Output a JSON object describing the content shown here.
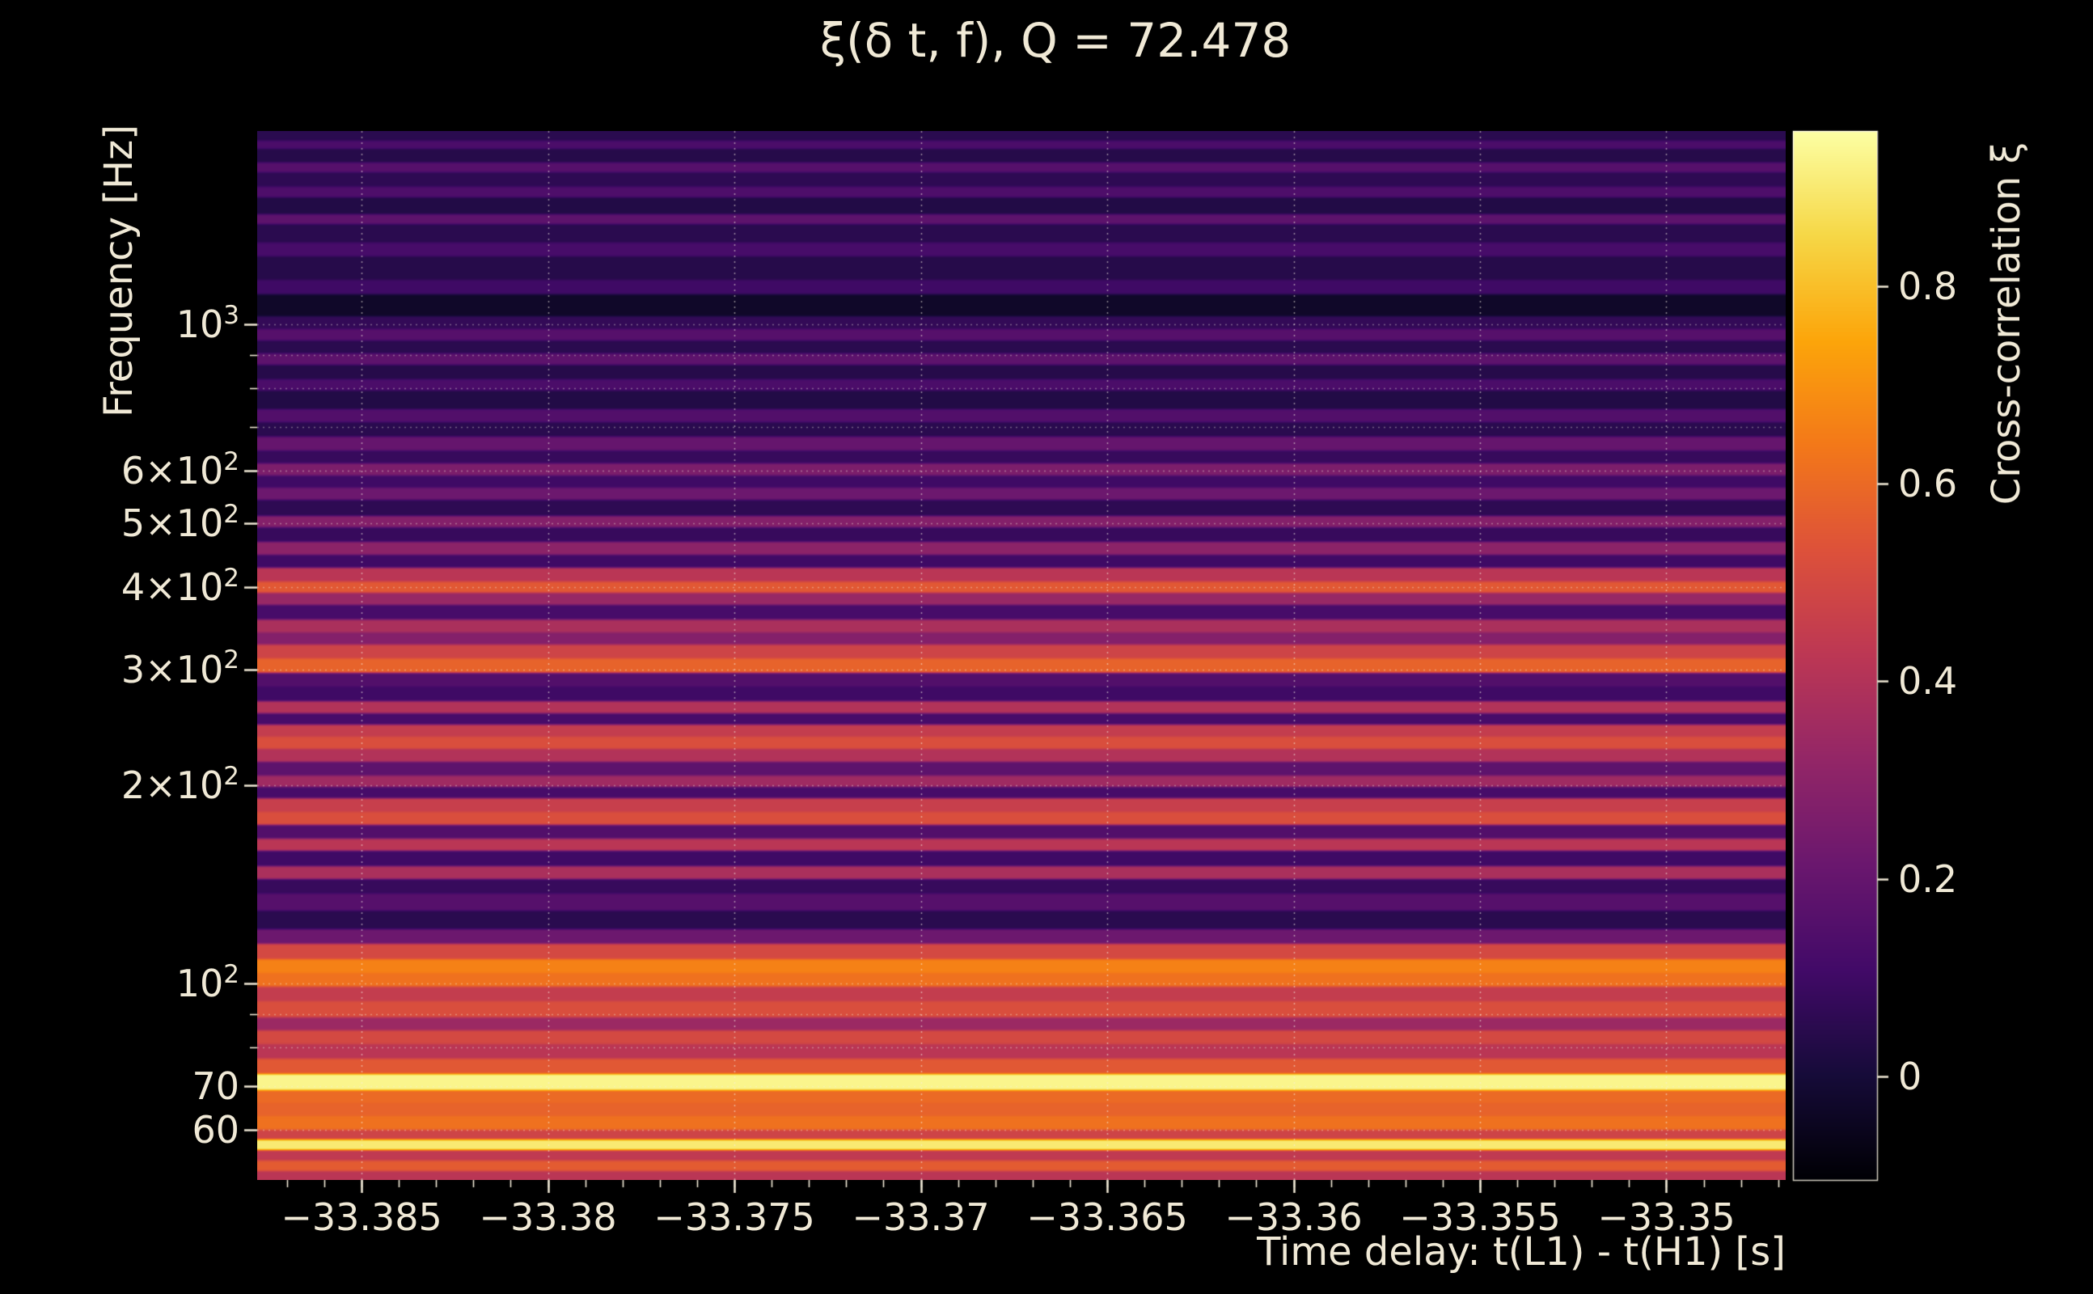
{
  "colors": {
    "background": "#000000",
    "text": "#f0e9d6"
  },
  "chart_data": {
    "type": "heatmap",
    "title": "ξ(δ t, f), Q = 72.478",
    "x": {
      "label": "Time delay: t(L1) - t(H1) [s]",
      "min": -33.3878,
      "max": -33.3468,
      "minor_tick_step": 0.001,
      "ticks": [
        {
          "value": -33.385,
          "label": "−33.385"
        },
        {
          "value": -33.38,
          "label": "−33.38"
        },
        {
          "value": -33.375,
          "label": "−33.375"
        },
        {
          "value": -33.37,
          "label": "−33.37"
        },
        {
          "value": -33.365,
          "label": "−33.365"
        },
        {
          "value": -33.36,
          "label": "−33.36"
        },
        {
          "value": -33.355,
          "label": "−33.355"
        },
        {
          "value": -33.35,
          "label": "−33.35"
        }
      ]
    },
    "y": {
      "label": "Frequency [Hz]",
      "scale": "log",
      "min": 50.4,
      "max": 1966,
      "ticks": [
        {
          "value": 1000,
          "mantissa": "10",
          "exponent": "3"
        },
        {
          "value": 600,
          "mantissa": "6×10",
          "exponent": "2"
        },
        {
          "value": 500,
          "mantissa": "5×10",
          "exponent": "2"
        },
        {
          "value": 400,
          "mantissa": "4×10",
          "exponent": "2"
        },
        {
          "value": 300,
          "mantissa": "3×10",
          "exponent": "2"
        },
        {
          "value": 200,
          "mantissa": "2×10",
          "exponent": "2"
        },
        {
          "value": 100,
          "mantissa": "10",
          "exponent": "2"
        },
        {
          "value": 70,
          "mantissa": "70",
          "exponent": ""
        },
        {
          "value": 60,
          "mantissa": "60",
          "exponent": ""
        }
      ],
      "minor_ticks": [
        80,
        90,
        700,
        800,
        900,
        2000
      ]
    },
    "colorbar": {
      "label": "Cross-correlation ξ",
      "vmin": -0.105,
      "vmax": 0.957,
      "ticks": [
        {
          "value": 0,
          "label": "0"
        },
        {
          "value": 0.2,
          "label": "0.2"
        },
        {
          "value": 0.4,
          "label": "0.4"
        },
        {
          "value": 0.6,
          "label": "0.6"
        },
        {
          "value": 0.8,
          "label": "0.8"
        }
      ]
    },
    "colormap": {
      "name": "inferno",
      "anchors": [
        [
          0.0,
          "#000004"
        ],
        [
          0.1,
          "#160b39"
        ],
        [
          0.2,
          "#420a68"
        ],
        [
          0.3,
          "#6a176e"
        ],
        [
          0.4,
          "#932667"
        ],
        [
          0.5,
          "#bc3754"
        ],
        [
          0.6,
          "#dd513a"
        ],
        [
          0.7,
          "#f37819"
        ],
        [
          0.8,
          "#fca50a"
        ],
        [
          0.9,
          "#f6d746"
        ],
        [
          1.0,
          "#fcffa4"
        ]
      ]
    },
    "bands_format": [
      "f_hi_hz",
      "f_lo_hz",
      "xi"
    ],
    "bands": [
      [
        2000,
        1900,
        0.05
      ],
      [
        1900,
        1850,
        0.13
      ],
      [
        1850,
        1760,
        0.04
      ],
      [
        1760,
        1700,
        0.16
      ],
      [
        1700,
        1620,
        0.06
      ],
      [
        1620,
        1560,
        0.14
      ],
      [
        1560,
        1470,
        0.03
      ],
      [
        1470,
        1420,
        0.18
      ],
      [
        1420,
        1330,
        0.05
      ],
      [
        1330,
        1270,
        0.12
      ],
      [
        1270,
        1170,
        0.04
      ],
      [
        1170,
        1110,
        0.1
      ],
      [
        1110,
        1030,
        -0.03
      ],
      [
        1030,
        985,
        0.07
      ],
      [
        985,
        945,
        0.16
      ],
      [
        945,
        905,
        0.05
      ],
      [
        905,
        870,
        0.18
      ],
      [
        870,
        825,
        0.04
      ],
      [
        825,
        795,
        0.13
      ],
      [
        795,
        745,
        0.03
      ],
      [
        745,
        712,
        0.15
      ],
      [
        712,
        675,
        0.05
      ],
      [
        675,
        645,
        0.2
      ],
      [
        645,
        615,
        0.08
      ],
      [
        615,
        590,
        0.26
      ],
      [
        590,
        565,
        0.1
      ],
      [
        565,
        542,
        0.22
      ],
      [
        542,
        512,
        0.06
      ],
      [
        512,
        492,
        0.28
      ],
      [
        492,
        468,
        0.08
      ],
      [
        468,
        448,
        0.3
      ],
      [
        448,
        428,
        0.1
      ],
      [
        428,
        408,
        0.42
      ],
      [
        408,
        392,
        0.55
      ],
      [
        392,
        376,
        0.33
      ],
      [
        376,
        357,
        0.12
      ],
      [
        357,
        341,
        0.38
      ],
      [
        341,
        327,
        0.28
      ],
      [
        327,
        312,
        0.48
      ],
      [
        312,
        296,
        0.58
      ],
      [
        296,
        282,
        0.15
      ],
      [
        282,
        268,
        0.1
      ],
      [
        268,
        257,
        0.4
      ],
      [
        257,
        247,
        0.12
      ],
      [
        247,
        237,
        0.45
      ],
      [
        237,
        227,
        0.52
      ],
      [
        227,
        217,
        0.4
      ],
      [
        217,
        207,
        0.18
      ],
      [
        207,
        199,
        0.35
      ],
      [
        199,
        191,
        0.12
      ],
      [
        191,
        182,
        0.46
      ],
      [
        182,
        174,
        0.52
      ],
      [
        174,
        166,
        0.15
      ],
      [
        166,
        159,
        0.42
      ],
      [
        159,
        151,
        0.1
      ],
      [
        151,
        144,
        0.38
      ],
      [
        144,
        137,
        0.08
      ],
      [
        137,
        129,
        0.16
      ],
      [
        129,
        121,
        0.05
      ],
      [
        121,
        115,
        0.22
      ],
      [
        115,
        109,
        0.5
      ],
      [
        109,
        104,
        0.66
      ],
      [
        104,
        99,
        0.62
      ],
      [
        99,
        94,
        0.45
      ],
      [
        94,
        89,
        0.52
      ],
      [
        89,
        85,
        0.34
      ],
      [
        85,
        81,
        0.5
      ],
      [
        81,
        77,
        0.42
      ],
      [
        77,
        73,
        0.55
      ],
      [
        73,
        69,
        0.93
      ],
      [
        69,
        66,
        0.6
      ],
      [
        66,
        63,
        0.58
      ],
      [
        63,
        60,
        0.62
      ],
      [
        60,
        58,
        0.48
      ],
      [
        58,
        56,
        0.9
      ],
      [
        56,
        54,
        0.44
      ],
      [
        54,
        52,
        0.56
      ],
      [
        52,
        50,
        0.42
      ]
    ]
  }
}
